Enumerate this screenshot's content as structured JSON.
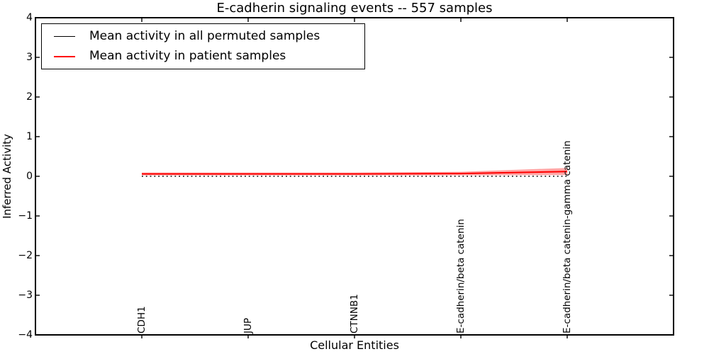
{
  "chart_data": {
    "type": "line",
    "title": "E-cadherin signaling events -- 557 samples",
    "xlabel": "Cellular Entities",
    "ylabel": "Inferred Activity",
    "ylim": [
      -4,
      4
    ],
    "yticks": [
      "4",
      "3",
      "2",
      "1",
      "0",
      "−1",
      "−2",
      "−3",
      "−4"
    ],
    "ytick_values": [
      4,
      3,
      2,
      1,
      0,
      -1,
      -2,
      -3,
      -4
    ],
    "categories": [
      "CDH1",
      "JUP",
      "CTNNB1",
      "E-cadherin/beta catenin",
      "E-cadherin/beta catenin-gamma catenin"
    ],
    "series": [
      {
        "name": "Mean activity in all permuted samples",
        "color": "#000000",
        "style": "dotted",
        "values": [
          0.0,
          0.0,
          0.0,
          0.0,
          0.0
        ]
      },
      {
        "name": "Mean activity in patient samples",
        "color": "#ff0000",
        "style": "solid",
        "values": [
          0.06,
          0.06,
          0.06,
          0.07,
          0.12
        ],
        "band_halfwidth": [
          0.035,
          0.035,
          0.035,
          0.045,
          0.09
        ],
        "band_color_rgba": "rgba(255,0,0,0.35)"
      }
    ],
    "legend_position": "upper left",
    "grid": false
  }
}
